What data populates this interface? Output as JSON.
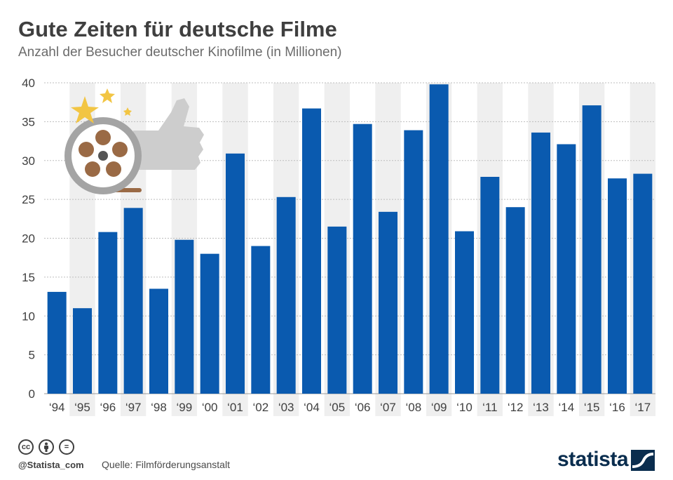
{
  "title": "Gute Zeiten für deutsche Filme",
  "subtitle": "Anzahl der Besucher deutscher Kinofilme (in Millionen)",
  "chart_data": {
    "type": "bar",
    "categories": [
      "‘94",
      "‘95",
      "‘96",
      "‘97",
      "‘98",
      "‘99",
      "‘00",
      "‘01",
      "‘02",
      "‘03",
      "‘04",
      "‘05",
      "‘06",
      "‘07",
      "‘08",
      "‘09",
      "‘10",
      "‘11",
      "‘12",
      "‘13",
      "‘14",
      "‘15",
      "‘16",
      "‘17"
    ],
    "values": [
      13.1,
      11.0,
      20.8,
      23.9,
      13.5,
      19.8,
      18.0,
      30.9,
      19.0,
      25.3,
      36.7,
      21.5,
      34.7,
      23.4,
      33.9,
      39.8,
      20.9,
      27.9,
      24.0,
      33.6,
      32.1,
      37.1,
      27.7,
      28.3
    ],
    "yticks": [
      0,
      5,
      10,
      15,
      20,
      25,
      30,
      35,
      40
    ],
    "ylim": [
      0,
      40
    ],
    "grid": true,
    "bar_color": "#0a5aaf",
    "stripe_color": "#efefef"
  },
  "footer": {
    "handle": "@Statista_com",
    "source_label": "Quelle:",
    "source_name": "Filmförderungsanstalt",
    "brand": "statista",
    "license_icons": [
      "cc-icon",
      "attribution-icon",
      "no-derivatives-icon"
    ]
  }
}
